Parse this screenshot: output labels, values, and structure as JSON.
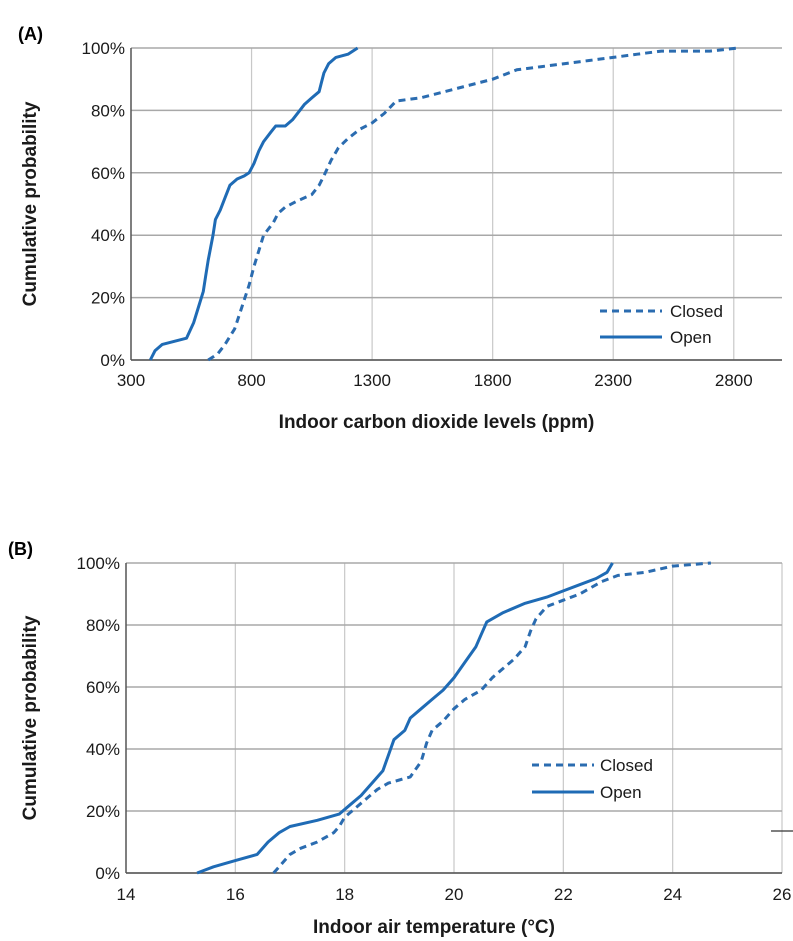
{
  "chart_data": [
    {
      "type": "line",
      "panel_label": "(A)",
      "xlabel": "Indoor carbon dioxide levels (ppm)",
      "ylabel": "Cumulative probability",
      "xlim": [
        300,
        3000
      ],
      "ylim": [
        0,
        100
      ],
      "x_ticks": [
        300,
        800,
        1300,
        1800,
        2300,
        2800
      ],
      "x_tick_labels": [
        "300",
        "800",
        "1300",
        "1800",
        "2300",
        "2800"
      ],
      "y_ticks": [
        0,
        20,
        40,
        60,
        80,
        100
      ],
      "y_tick_labels": [
        "0%",
        "20%",
        "40%",
        "60%",
        "80%",
        "100%"
      ],
      "grid": "on",
      "legend_position": "bottom-right",
      "series": [
        {
          "name": "Closed",
          "style": "dashed",
          "color": "#2b6cb0",
          "points": [
            [
              620,
              0
            ],
            [
              660,
              2
            ],
            [
              690,
              5
            ],
            [
              730,
              10
            ],
            [
              760,
              17
            ],
            [
              790,
              24
            ],
            [
              810,
              30
            ],
            [
              830,
              35
            ],
            [
              850,
              40
            ],
            [
              890,
              44
            ],
            [
              910,
              47
            ],
            [
              940,
              49
            ],
            [
              990,
              51
            ],
            [
              1050,
              53
            ],
            [
              1080,
              56
            ],
            [
              1100,
              59
            ],
            [
              1130,
              64
            ],
            [
              1160,
              68
            ],
            [
              1200,
              71
            ],
            [
              1250,
              74
            ],
            [
              1300,
              76
            ],
            [
              1350,
              79
            ],
            [
              1400,
              83
            ],
            [
              1500,
              84
            ],
            [
              1600,
              86
            ],
            [
              1700,
              88
            ],
            [
              1800,
              90
            ],
            [
              1900,
              93
            ],
            [
              2000,
              94
            ],
            [
              2100,
              95
            ],
            [
              2200,
              96
            ],
            [
              2300,
              97
            ],
            [
              2400,
              98
            ],
            [
              2500,
              99
            ],
            [
              2600,
              99
            ],
            [
              2700,
              99
            ],
            [
              2820,
              100
            ]
          ]
        },
        {
          "name": "Open",
          "style": "solid",
          "color": "#1f6bb5",
          "points": [
            [
              380,
              0
            ],
            [
              400,
              3
            ],
            [
              430,
              5
            ],
            [
              480,
              6
            ],
            [
              530,
              7
            ],
            [
              560,
              12
            ],
            [
              580,
              17
            ],
            [
              600,
              22
            ],
            [
              610,
              27
            ],
            [
              620,
              32
            ],
            [
              630,
              36
            ],
            [
              640,
              40
            ],
            [
              650,
              45
            ],
            [
              670,
              48
            ],
            [
              690,
              52
            ],
            [
              710,
              56
            ],
            [
              740,
              58
            ],
            [
              770,
              59
            ],
            [
              790,
              60
            ],
            [
              810,
              63
            ],
            [
              830,
              67
            ],
            [
              850,
              70
            ],
            [
              880,
              73
            ],
            [
              900,
              75
            ],
            [
              940,
              75
            ],
            [
              970,
              77
            ],
            [
              1000,
              80
            ],
            [
              1020,
              82
            ],
            [
              1050,
              84
            ],
            [
              1080,
              86
            ],
            [
              1090,
              89
            ],
            [
              1100,
              92
            ],
            [
              1120,
              95
            ],
            [
              1150,
              97
            ],
            [
              1200,
              98
            ],
            [
              1240,
              100
            ]
          ]
        }
      ]
    },
    {
      "type": "line",
      "panel_label": "(B)",
      "xlabel": "Indoor air temperature (°C)",
      "ylabel": "Cumulative probability",
      "xlim": [
        14,
        26
      ],
      "ylim": [
        0,
        100
      ],
      "x_ticks": [
        14,
        16,
        18,
        20,
        22,
        24,
        26
      ],
      "x_tick_labels": [
        "14",
        "16",
        "18",
        "20",
        "22",
        "24",
        "26"
      ],
      "y_ticks": [
        0,
        20,
        40,
        60,
        80,
        100
      ],
      "y_tick_labels": [
        "0%",
        "20%",
        "40%",
        "60%",
        "80%",
        "100%"
      ],
      "grid": "on",
      "legend_position": "bottom-right",
      "series": [
        {
          "name": "Closed",
          "style": "dashed",
          "color": "#2b6cb0",
          "points": [
            [
              16.7,
              0
            ],
            [
              16.8,
              2
            ],
            [
              16.9,
              4
            ],
            [
              17.0,
              6
            ],
            [
              17.2,
              8
            ],
            [
              17.5,
              10
            ],
            [
              17.8,
              13
            ],
            [
              17.9,
              15
            ],
            [
              18.0,
              18
            ],
            [
              18.2,
              21
            ],
            [
              18.4,
              24
            ],
            [
              18.6,
              27
            ],
            [
              18.8,
              29
            ],
            [
              19.0,
              30
            ],
            [
              19.2,
              31
            ],
            [
              19.4,
              36
            ],
            [
              19.5,
              42
            ],
            [
              19.6,
              46
            ],
            [
              19.8,
              49
            ],
            [
              20.0,
              53
            ],
            [
              20.2,
              56
            ],
            [
              20.5,
              59
            ],
            [
              20.7,
              63
            ],
            [
              20.9,
              66
            ],
            [
              21.1,
              69
            ],
            [
              21.3,
              73
            ],
            [
              21.4,
              78
            ],
            [
              21.5,
              82
            ],
            [
              21.7,
              86
            ],
            [
              22.0,
              88
            ],
            [
              22.3,
              90
            ],
            [
              22.5,
              92
            ],
            [
              22.7,
              94
            ],
            [
              23.0,
              96
            ],
            [
              23.5,
              97
            ],
            [
              24.0,
              99
            ],
            [
              24.7,
              100
            ]
          ]
        },
        {
          "name": "Open",
          "style": "solid",
          "color": "#1f6bb5",
          "points": [
            [
              15.3,
              0
            ],
            [
              15.6,
              2
            ],
            [
              16.0,
              4
            ],
            [
              16.4,
              6
            ],
            [
              16.6,
              10
            ],
            [
              16.8,
              13
            ],
            [
              17.0,
              15
            ],
            [
              17.5,
              17
            ],
            [
              17.9,
              19
            ],
            [
              18.1,
              22
            ],
            [
              18.3,
              25
            ],
            [
              18.5,
              29
            ],
            [
              18.7,
              33
            ],
            [
              18.8,
              38
            ],
            [
              18.9,
              43
            ],
            [
              19.1,
              46
            ],
            [
              19.2,
              50
            ],
            [
              19.4,
              53
            ],
            [
              19.6,
              56
            ],
            [
              19.8,
              59
            ],
            [
              20.0,
              63
            ],
            [
              20.2,
              68
            ],
            [
              20.4,
              73
            ],
            [
              20.5,
              77
            ],
            [
              20.6,
              81
            ],
            [
              20.9,
              84
            ],
            [
              21.3,
              87
            ],
            [
              21.7,
              89
            ],
            [
              22.0,
              91
            ],
            [
              22.3,
              93
            ],
            [
              22.6,
              95
            ],
            [
              22.8,
              97
            ],
            [
              22.9,
              100
            ]
          ]
        }
      ]
    }
  ]
}
